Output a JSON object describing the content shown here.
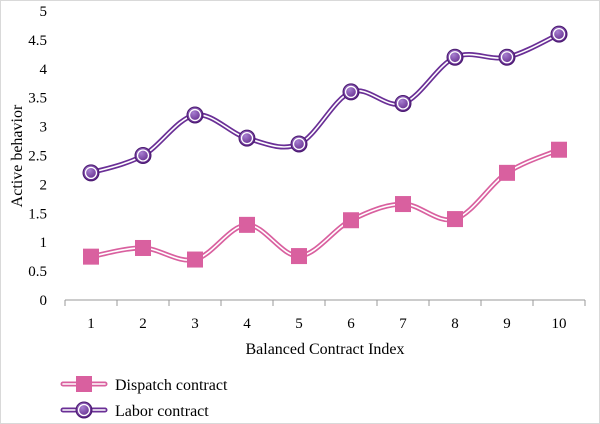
{
  "chart_data": {
    "type": "line",
    "xlabel": "Balanced Contract Index",
    "ylabel": "Active behavior",
    "x": [
      1,
      2,
      3,
      4,
      5,
      6,
      7,
      8,
      9,
      10
    ],
    "ylim": [
      0,
      5
    ],
    "yticks": [
      "0",
      "0.5",
      "1",
      "1.5",
      "2",
      "2.5",
      "3",
      "3.5",
      "4",
      "4.5",
      "5"
    ],
    "xticks": [
      "1",
      "2",
      "3",
      "4",
      "5",
      "6",
      "7",
      "8",
      "9",
      "10"
    ],
    "grid": false,
    "legend_position": "bottom-left",
    "series": [
      {
        "name": "Dispatch contract",
        "values": [
          0.75,
          0.9,
          0.7,
          1.3,
          0.76,
          1.38,
          1.66,
          1.4,
          2.2,
          2.6
        ],
        "color": "#d9609f",
        "marker": "square"
      },
      {
        "name": "Labor contract",
        "values": [
          2.2,
          2.5,
          3.2,
          2.8,
          2.7,
          3.6,
          3.4,
          4.2,
          4.2,
          4.6
        ],
        "color": "#6a2f96",
        "marker": "circle"
      }
    ]
  }
}
